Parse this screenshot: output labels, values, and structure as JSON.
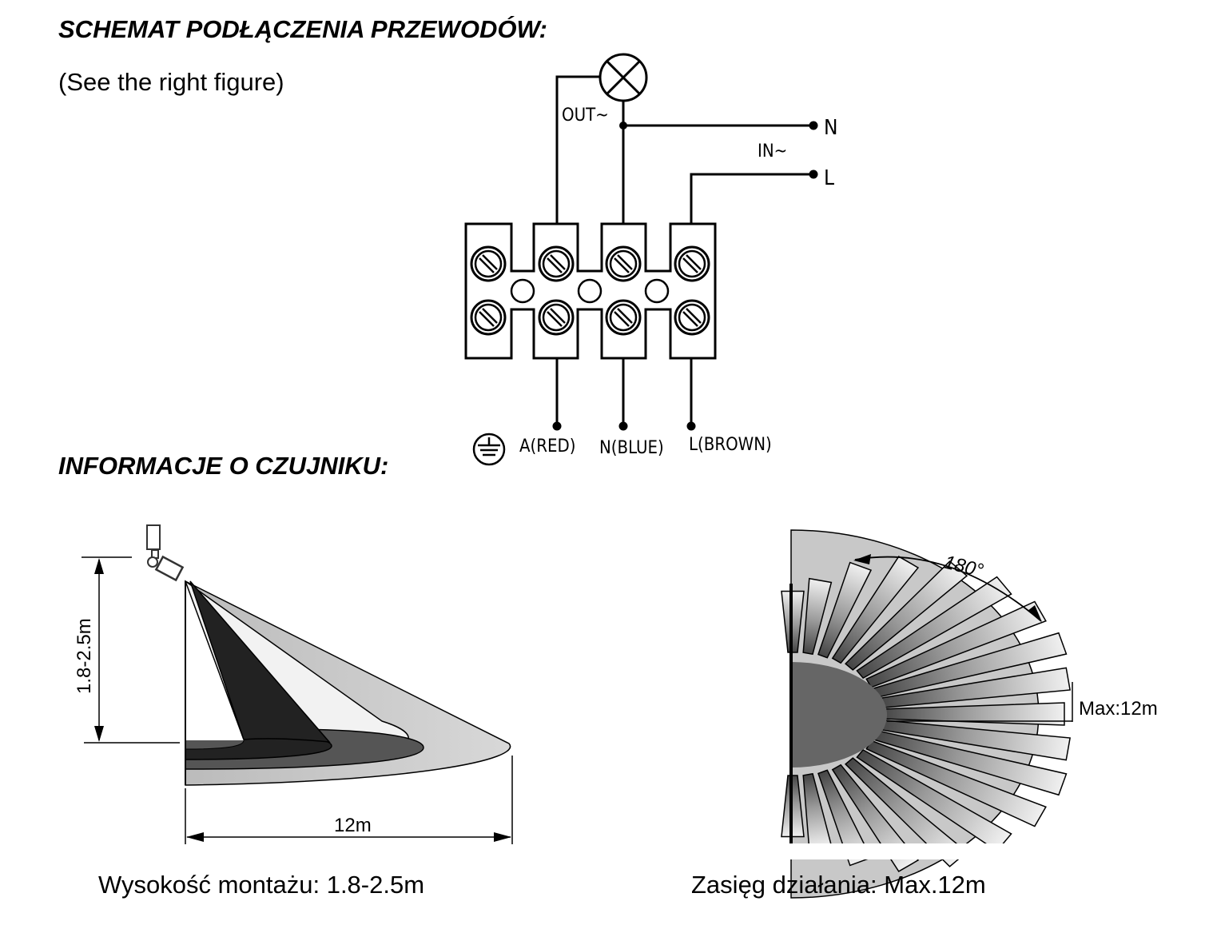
{
  "headings": {
    "wiring": "SCHEMAT PODŁĄCZENIA PRZEWODÓW:",
    "sensor_info": "INFORMACJE O CZUJNIKU:"
  },
  "note": "(See the right figure)",
  "wiring_diagram": {
    "out_label": "OUT~",
    "in_label": "IN~",
    "n_label": "N",
    "l_label": "L",
    "terminals": [
      "A(RED)",
      "N(BLUE)",
      "L(BROWN)"
    ],
    "ground_icon": "ground-symbol-icon",
    "lamp_icon": "lamp-symbol-icon"
  },
  "side_view": {
    "height_label": "1.8-2.5m",
    "range_label": "12m",
    "caption": "Wysokość montażu: 1.8-2.5m"
  },
  "top_view": {
    "angle_label": "180°",
    "max_label": "Max:12m",
    "caption": "Zasięg działania: Max.12m"
  }
}
